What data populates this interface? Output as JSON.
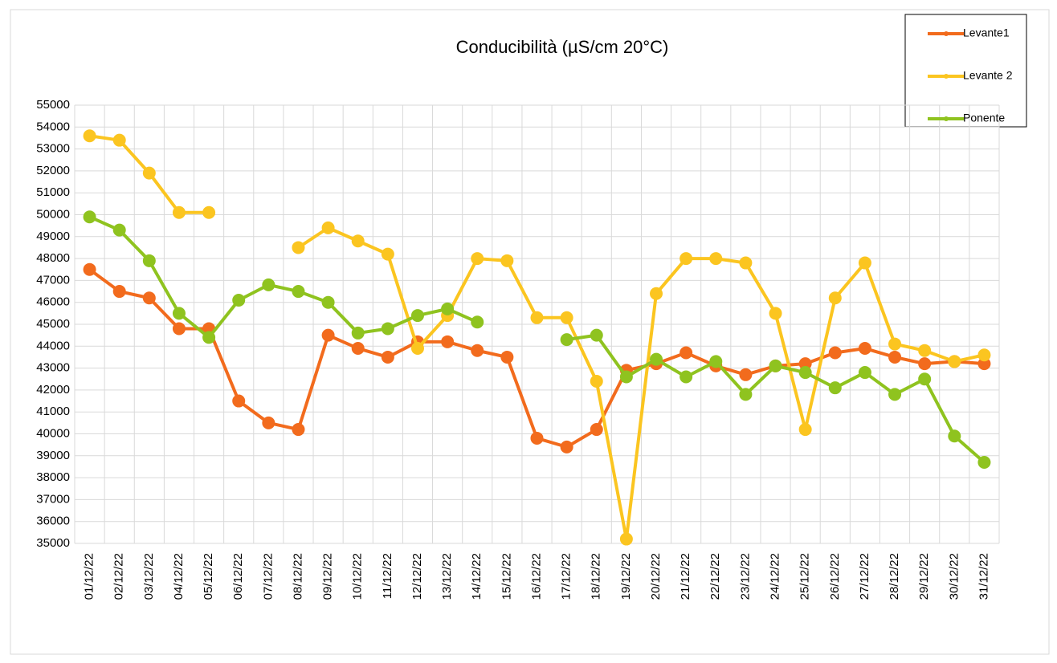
{
  "chart_data": {
    "type": "line",
    "title": "Conducibilità (µS/cm 20°C)",
    "categories": [
      "01/12/22",
      "02/12/22",
      "03/12/22",
      "04/12/22",
      "05/12/22",
      "06/12/22",
      "07/12/22",
      "08/12/22",
      "09/12/22",
      "10/12/22",
      "11/12/22",
      "12/12/22",
      "13/12/22",
      "14/12/22",
      "15/12/22",
      "16/12/22",
      "17/12/22",
      "18/12/22",
      "19/12/22",
      "20/12/22",
      "21/12/22",
      "22/12/22",
      "23/12/22",
      "24/12/22",
      "25/12/22",
      "26/12/22",
      "27/12/22",
      "28/12/22",
      "29/12/22",
      "30/12/22",
      "31/12/22"
    ],
    "series": [
      {
        "name": "Levante1",
        "color": "#f26b1d",
        "values": [
          47500,
          46500,
          46200,
          44800,
          44800,
          41500,
          40500,
          40200,
          44500,
          43900,
          43500,
          44200,
          44200,
          43800,
          43500,
          39800,
          39400,
          40200,
          42900,
          43200,
          43700,
          43100,
          42700,
          43100,
          43200,
          43700,
          43900,
          43500,
          43200,
          43300,
          43200
        ]
      },
      {
        "name": "Levante 2",
        "color": "#fbc520",
        "values": [
          53600,
          53400,
          51900,
          50100,
          50100,
          null,
          null,
          48500,
          49400,
          48800,
          48200,
          43900,
          45400,
          48000,
          47900,
          45300,
          45300,
          42400,
          35200,
          46400,
          48000,
          48000,
          47800,
          45500,
          40200,
          46200,
          47800,
          44100,
          43800,
          43300,
          43600
        ]
      },
      {
        "name": "Ponente",
        "color": "#8fc31f",
        "values": [
          49900,
          49300,
          47900,
          45500,
          44400,
          46100,
          46800,
          46500,
          46000,
          44600,
          44800,
          45400,
          45700,
          45100,
          null,
          null,
          44300,
          44500,
          42600,
          43400,
          42600,
          43300,
          41800,
          43100,
          42800,
          42100,
          42800,
          41800,
          42500,
          39900,
          38700
        ]
      }
    ],
    "ylim": [
      35000,
      55000
    ],
    "yticks": [
      35000,
      36000,
      37000,
      38000,
      39000,
      40000,
      41000,
      42000,
      43000,
      44000,
      45000,
      46000,
      47000,
      48000,
      49000,
      50000,
      51000,
      52000,
      53000,
      54000,
      55000
    ],
    "grid": true,
    "legend": "top-right"
  }
}
